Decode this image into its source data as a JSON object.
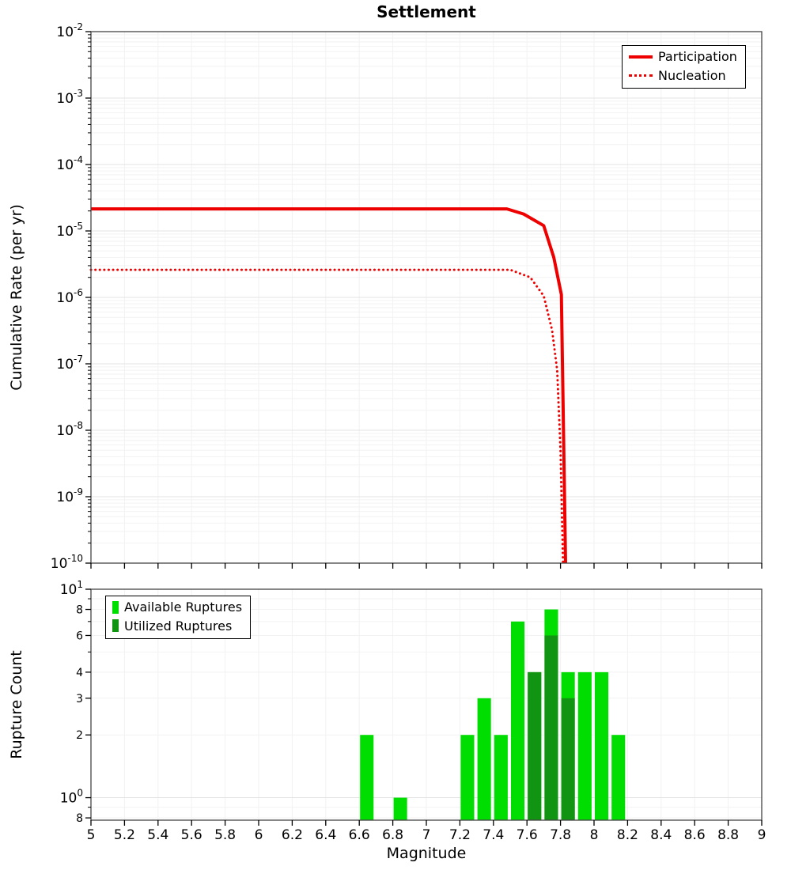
{
  "title": "Settlement",
  "axes": {
    "x_label": "Magnitude",
    "top_y_label": "Cumulative Rate (per yr)",
    "bottom_y_label": "Rupture Count",
    "x_tick_labels": [
      "5",
      "5.2",
      "5.4",
      "5.6",
      "5.8",
      "6",
      "6.2",
      "6.4",
      "6.6",
      "6.8",
      "7",
      "7.2",
      "7.4",
      "7.6",
      "7.8",
      "8",
      "8.2",
      "8.4",
      "8.6",
      "8.8",
      "9"
    ]
  },
  "colors": {
    "line_red": "#ee0000",
    "available_green": "#00dd00",
    "utilized_green": "#119411",
    "grid_major": "#e3e3e3",
    "grid_minor": "#f2f2f2",
    "frame": "#444444"
  },
  "chart_data": [
    {
      "type": "line",
      "title": "Settlement",
      "xlabel": "Magnitude",
      "ylabel": "Cumulative Rate (per yr)",
      "xlim": [
        5,
        9
      ],
      "ylim": [
        1e-10,
        0.01
      ],
      "yscale": "log",
      "grid": true,
      "legend_position": "top-right",
      "legend": [
        {
          "label": "Participation",
          "line_style": "solid"
        },
        {
          "label": "Nucleation",
          "line_style": "dotted"
        }
      ],
      "y_ticks": [
        {
          "label": "10",
          "sup": "-2",
          "value": 0.01
        },
        {
          "label": "10",
          "sup": "-3",
          "value": 0.001
        },
        {
          "label": "10",
          "sup": "-4",
          "value": 0.0001
        },
        {
          "label": "10",
          "sup": "-5",
          "value": 1e-05
        },
        {
          "label": "10",
          "sup": "-6",
          "value": 1e-06
        },
        {
          "label": "10",
          "sup": "-7",
          "value": 1e-07
        },
        {
          "label": "10",
          "sup": "-8",
          "value": 1e-08
        },
        {
          "label": "10",
          "sup": "-9",
          "value": 1e-09
        },
        {
          "label": "10",
          "sup": "-10",
          "value": 1e-10
        }
      ],
      "series": [
        {
          "name": "Participation",
          "style": "solid",
          "points": [
            [
              5,
              2.15e-05
            ],
            [
              7.48,
              2.15e-05
            ],
            [
              7.58,
              1.8e-05
            ],
            [
              7.7,
              1.2e-05
            ],
            [
              7.76,
              4e-06
            ],
            [
              7.805,
              1.1e-06
            ],
            [
              7.83,
              1e-10
            ]
          ]
        },
        {
          "name": "Nucleation",
          "style": "dotted",
          "points": [
            [
              5,
              2.6e-06
            ],
            [
              7.5,
              2.6e-06
            ],
            [
              7.62,
              2e-06
            ],
            [
              7.7,
              1.05e-06
            ],
            [
              7.75,
              3.2e-07
            ],
            [
              7.78,
              8e-08
            ],
            [
              7.8,
              5e-09
            ],
            [
              7.815,
              1e-10
            ]
          ]
        }
      ]
    },
    {
      "type": "bar",
      "ylabel": "Rupture Count",
      "xlim": [
        5,
        9
      ],
      "ylim": [
        0.78,
        10
      ],
      "yscale": "log",
      "grid": true,
      "legend_position": "top-left",
      "legend": [
        {
          "label": "Available Ruptures"
        },
        {
          "label": "Utilized Ruptures"
        }
      ],
      "y_ticks": [
        {
          "label": "10",
          "sup": "1",
          "value": 10
        },
        {
          "label": "8",
          "value": 8
        },
        {
          "label": "6",
          "value": 6
        },
        {
          "label": "4",
          "value": 4
        },
        {
          "label": "3",
          "value": 3
        },
        {
          "label": "2",
          "value": 2
        },
        {
          "label": "10",
          "sup": "0",
          "value": 1
        },
        {
          "label": "8",
          "value": 0.8
        }
      ],
      "bin_width": 0.1,
      "bar_width": 0.09,
      "bars": [
        {
          "mag": 6.6,
          "available": 2,
          "utilized": 0
        },
        {
          "mag": 6.8,
          "available": 1,
          "utilized": 0
        },
        {
          "mag": 7.2,
          "available": 2,
          "utilized": 0
        },
        {
          "mag": 7.3,
          "available": 3,
          "utilized": 0
        },
        {
          "mag": 7.4,
          "available": 2,
          "utilized": 0
        },
        {
          "mag": 7.5,
          "available": 7,
          "utilized": 0
        },
        {
          "mag": 7.6,
          "available": 4,
          "utilized": 4
        },
        {
          "mag": 7.7,
          "available": 8,
          "utilized": 6
        },
        {
          "mag": 7.8,
          "available": 4,
          "utilized": 3
        },
        {
          "mag": 7.9,
          "available": 4,
          "utilized": 0
        },
        {
          "mag": 8.0,
          "available": 4,
          "utilized": 0
        },
        {
          "mag": 8.1,
          "available": 2,
          "utilized": 0
        }
      ]
    }
  ]
}
